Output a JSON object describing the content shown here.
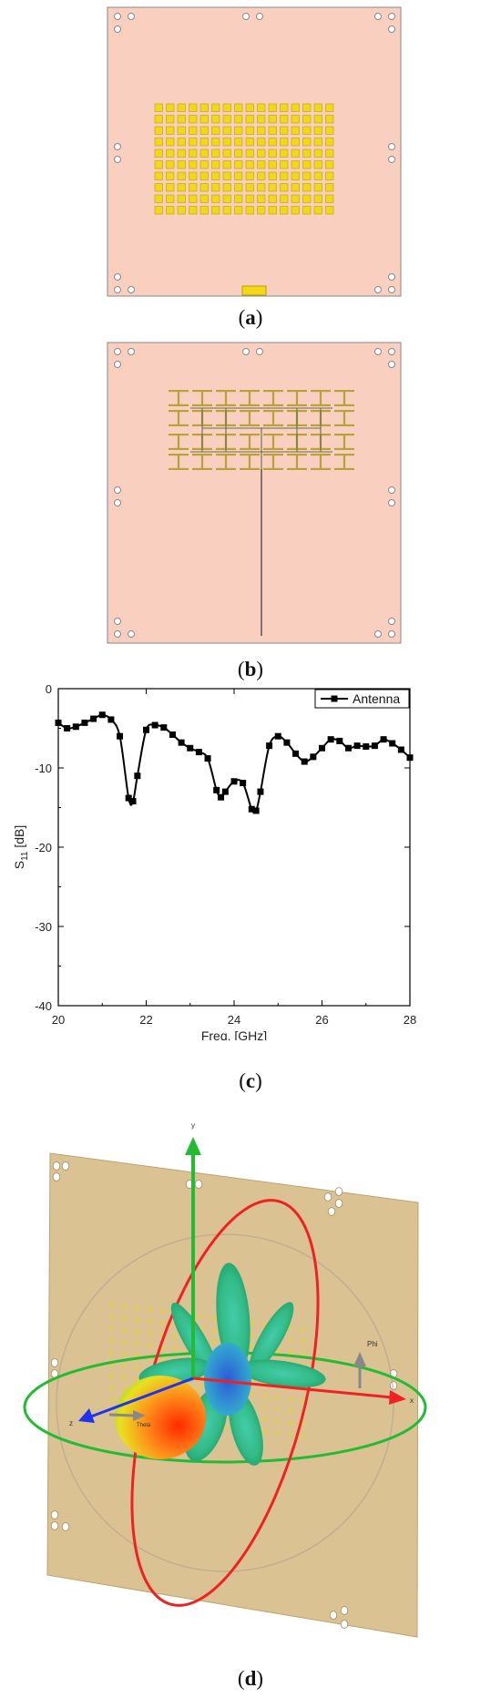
{
  "captions": {
    "a": "a",
    "b": "b",
    "c": "c",
    "d": "d"
  },
  "colors": {
    "substrate": "#f9cfc0",
    "patch_yellow": "#f2d81a",
    "patch_border": "#b8a000",
    "fractal_gold": "#b8a23a",
    "plot_line": "#000000",
    "board_3d": "#d9bf8e",
    "axis_green": "#22bb33",
    "axis_red": "#ee2222",
    "axis_blue": "#2233ee"
  },
  "panel_d": {
    "axis_labels": {
      "y": "y",
      "x": "x",
      "z": "z",
      "phi": "Phi",
      "theta": "Theta"
    }
  },
  "chart_data": {
    "type": "line",
    "xlabel": "Freq. [GHz]",
    "ylabel_main": "S",
    "ylabel_sub": "11",
    "ylabel_unit": " [dB]",
    "xlim": [
      20,
      28
    ],
    "ylim": [
      -40,
      0
    ],
    "xticks": [
      20,
      22,
      24,
      26,
      28
    ],
    "yticks": [
      0,
      -10,
      -20,
      -30,
      -40
    ],
    "legend_position": "top-right",
    "series": [
      {
        "name": "Antenna",
        "x": [
          20.0,
          20.2,
          20.4,
          20.6,
          20.8,
          21.0,
          21.2,
          21.4,
          21.6,
          21.7,
          21.8,
          22.0,
          22.2,
          22.4,
          22.6,
          22.8,
          23.0,
          23.2,
          23.4,
          23.6,
          23.7,
          23.8,
          24.0,
          24.2,
          24.4,
          24.5,
          24.6,
          24.8,
          25.0,
          25.2,
          25.4,
          25.6,
          25.8,
          26.0,
          26.2,
          26.4,
          26.6,
          26.8,
          27.0,
          27.2,
          27.4,
          27.6,
          27.8,
          28.0
        ],
        "y": [
          -4.3,
          -5.0,
          -4.8,
          -4.3,
          -3.8,
          -3.3,
          -3.9,
          -6.0,
          -13.8,
          -14.2,
          -11.0,
          -5.2,
          -4.6,
          -4.9,
          -5.8,
          -6.8,
          -7.5,
          -8.0,
          -8.8,
          -12.8,
          -13.7,
          -13.0,
          -11.7,
          -11.9,
          -15.2,
          -15.4,
          -13.0,
          -7.2,
          -6.0,
          -6.8,
          -8.2,
          -9.2,
          -8.6,
          -7.5,
          -6.4,
          -6.6,
          -7.5,
          -7.2,
          -7.3,
          -7.2,
          -6.4,
          -6.9,
          -7.7,
          -8.7
        ]
      }
    ]
  }
}
